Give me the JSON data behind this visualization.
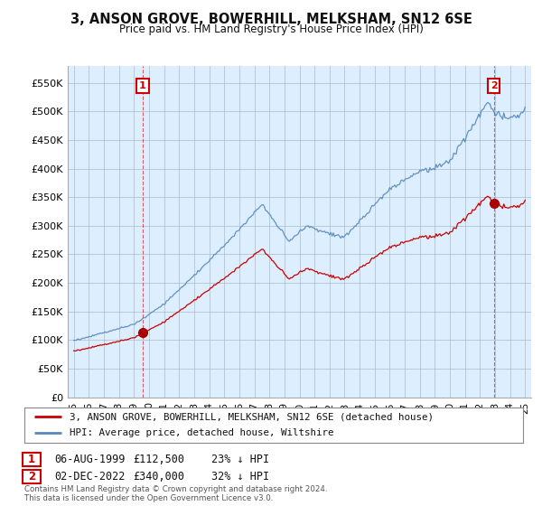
{
  "title": "3, ANSON GROVE, BOWERHILL, MELKSHAM, SN12 6SE",
  "subtitle": "Price paid vs. HM Land Registry's House Price Index (HPI)",
  "ylim": [
    0,
    580000
  ],
  "yticks": [
    0,
    50000,
    100000,
    150000,
    200000,
    250000,
    300000,
    350000,
    400000,
    450000,
    500000,
    550000
  ],
  "ytick_labels": [
    "£0",
    "£50K",
    "£100K",
    "£150K",
    "£200K",
    "£250K",
    "£300K",
    "£350K",
    "£400K",
    "£450K",
    "£500K",
    "£550K"
  ],
  "sale1": {
    "date_num": 1999.58,
    "price": 112500,
    "label": "1"
  },
  "sale2": {
    "date_num": 2022.92,
    "price": 340000,
    "label": "2"
  },
  "legend_line1": "3, ANSON GROVE, BOWERHILL, MELKSHAM, SN12 6SE (detached house)",
  "legend_line2": "HPI: Average price, detached house, Wiltshire",
  "table_row1": [
    "1",
    "06-AUG-1999",
    "£112,500",
    "23% ↓ HPI"
  ],
  "table_row2": [
    "2",
    "02-DEC-2022",
    "£340,000",
    "32% ↓ HPI"
  ],
  "footnote": "Contains HM Land Registry data © Crown copyright and database right 2024.\nThis data is licensed under the Open Government Licence v3.0.",
  "hpi_color": "#5588bb",
  "price_color": "#cc0000",
  "marker_color": "#aa0000",
  "label_box_color": "#cc0000",
  "bg_fill_color": "#ddeeff",
  "background_color": "#ffffff",
  "grid_color": "#aabbcc"
}
